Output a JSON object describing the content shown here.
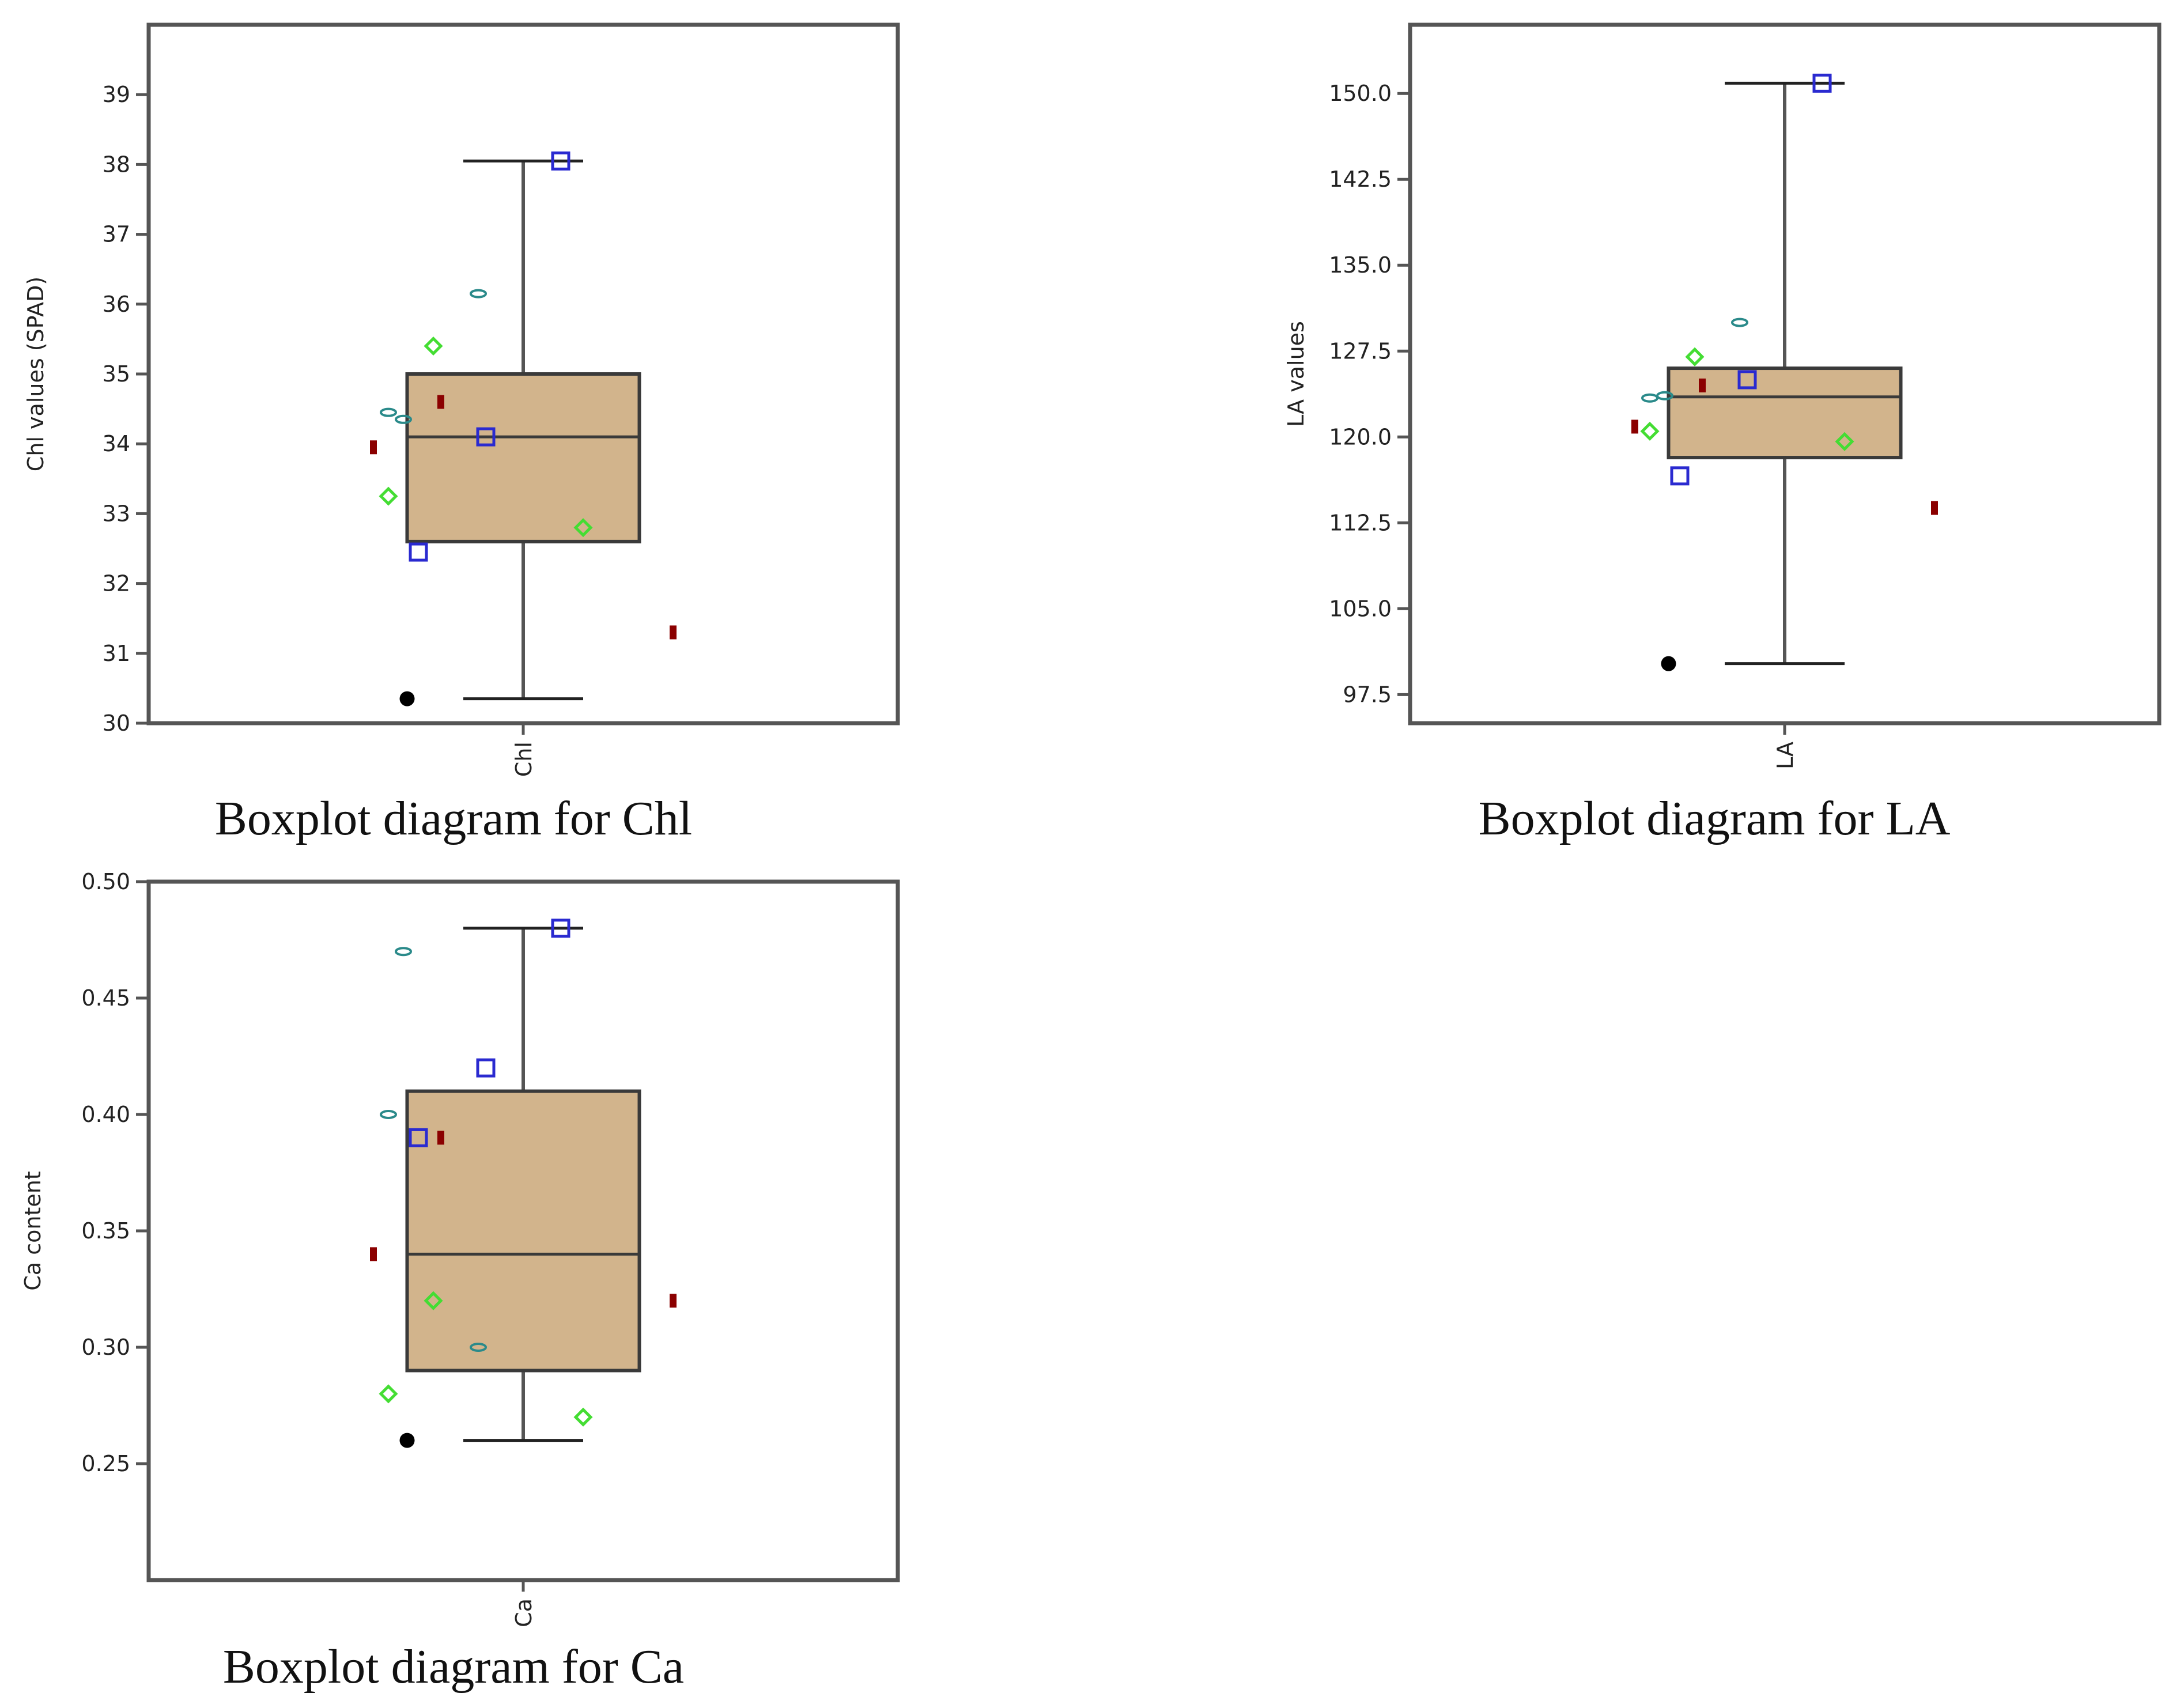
{
  "colors": {
    "box_fill": "#d2b48c",
    "box_stroke": "#3a3a3a",
    "whisker": "#555555",
    "frame": "#555555",
    "outlier": "#000000",
    "square_marker": "#2a2ad0",
    "teal_marker": "#2a8a8a",
    "diamond_marker": "#44dd33",
    "red_marker": "#8b0000"
  },
  "chart_data": [
    {
      "type": "boxplot",
      "category": "Chl",
      "ylabel": "Chl values (SPAD)",
      "caption": "Boxplot diagram for Chl",
      "ylim": [
        30,
        40
      ],
      "yticks": [
        "30",
        "31",
        "32",
        "33",
        "34",
        "35",
        "36",
        "37",
        "38",
        "39"
      ],
      "box": {
        "min": 30.35,
        "q1": 32.6,
        "median": 34.1,
        "q3": 35.0,
        "max": 38.05
      },
      "outliers": [
        30.35
      ],
      "points": [
        {
          "marker": "square",
          "x": 0.05,
          "y": 38.05
        },
        {
          "marker": "square",
          "x": -0.05,
          "y": 34.1
        },
        {
          "marker": "square",
          "x": -0.14,
          "y": 32.45
        },
        {
          "marker": "teal-oval",
          "x": -0.06,
          "y": 36.15
        },
        {
          "marker": "teal-oval",
          "x": -0.18,
          "y": 34.45
        },
        {
          "marker": "teal-oval",
          "x": -0.16,
          "y": 34.35
        },
        {
          "marker": "diamond",
          "x": -0.12,
          "y": 35.4
        },
        {
          "marker": "diamond",
          "x": -0.18,
          "y": 33.25
        },
        {
          "marker": "diamond",
          "x": 0.08,
          "y": 32.8
        },
        {
          "marker": "red-bar",
          "x": -0.11,
          "y": 34.6
        },
        {
          "marker": "red-bar",
          "x": -0.2,
          "y": 33.95
        },
        {
          "marker": "red-bar",
          "x": 0.2,
          "y": 31.3
        }
      ]
    },
    {
      "type": "boxplot",
      "category": "LA",
      "ylabel": "LA values",
      "caption": "Boxplot diagram for LA",
      "ylim": [
        95,
        156
      ],
      "yticks": [
        "97.5",
        "105.0",
        "112.5",
        "120.0",
        "127.5",
        "135.0",
        "142.5",
        "150.0"
      ],
      "box": {
        "min": 100.2,
        "q1": 118.2,
        "median": 123.5,
        "q3": 126.0,
        "max": 150.9
      },
      "outliers": [
        100.2
      ],
      "points": [
        {
          "marker": "square",
          "x": 0.05,
          "y": 150.9
        },
        {
          "marker": "square",
          "x": -0.05,
          "y": 125.0
        },
        {
          "marker": "square",
          "x": -0.14,
          "y": 116.6
        },
        {
          "marker": "teal-oval",
          "x": -0.06,
          "y": 130.0
        },
        {
          "marker": "teal-oval",
          "x": -0.18,
          "y": 123.4
        },
        {
          "marker": "teal-oval",
          "x": -0.16,
          "y": 123.6
        },
        {
          "marker": "diamond",
          "x": -0.12,
          "y": 127.0
        },
        {
          "marker": "diamond",
          "x": -0.18,
          "y": 120.5
        },
        {
          "marker": "diamond",
          "x": 0.08,
          "y": 119.6
        },
        {
          "marker": "red-bar",
          "x": -0.11,
          "y": 124.5
        },
        {
          "marker": "red-bar",
          "x": -0.2,
          "y": 120.9
        },
        {
          "marker": "red-bar",
          "x": 0.2,
          "y": 113.8
        }
      ]
    },
    {
      "type": "boxplot",
      "category": "Ca",
      "ylabel": "Ca content",
      "caption": "Boxplot diagram for Ca",
      "ylim": [
        0.2,
        0.5
      ],
      "yticks": [
        "0.25",
        "0.30",
        "0.35",
        "0.40",
        "0.45",
        "0.50"
      ],
      "box": {
        "min": 0.26,
        "q1": 0.29,
        "median": 0.34,
        "q3": 0.41,
        "max": 0.48
      },
      "outliers": [
        0.26
      ],
      "points": [
        {
          "marker": "square",
          "x": 0.05,
          "y": 0.48
        },
        {
          "marker": "square",
          "x": -0.05,
          "y": 0.42
        },
        {
          "marker": "square",
          "x": -0.14,
          "y": 0.39
        },
        {
          "marker": "teal-oval",
          "x": -0.16,
          "y": 0.47
        },
        {
          "marker": "teal-oval",
          "x": -0.18,
          "y": 0.4
        },
        {
          "marker": "teal-oval",
          "x": -0.06,
          "y": 0.3
        },
        {
          "marker": "diamond",
          "x": -0.12,
          "y": 0.32
        },
        {
          "marker": "diamond",
          "x": -0.18,
          "y": 0.28
        },
        {
          "marker": "diamond",
          "x": 0.08,
          "y": 0.27
        },
        {
          "marker": "red-bar",
          "x": -0.11,
          "y": 0.39
        },
        {
          "marker": "red-bar",
          "x": -0.2,
          "y": 0.34
        },
        {
          "marker": "red-bar",
          "x": 0.2,
          "y": 0.32
        }
      ]
    }
  ]
}
